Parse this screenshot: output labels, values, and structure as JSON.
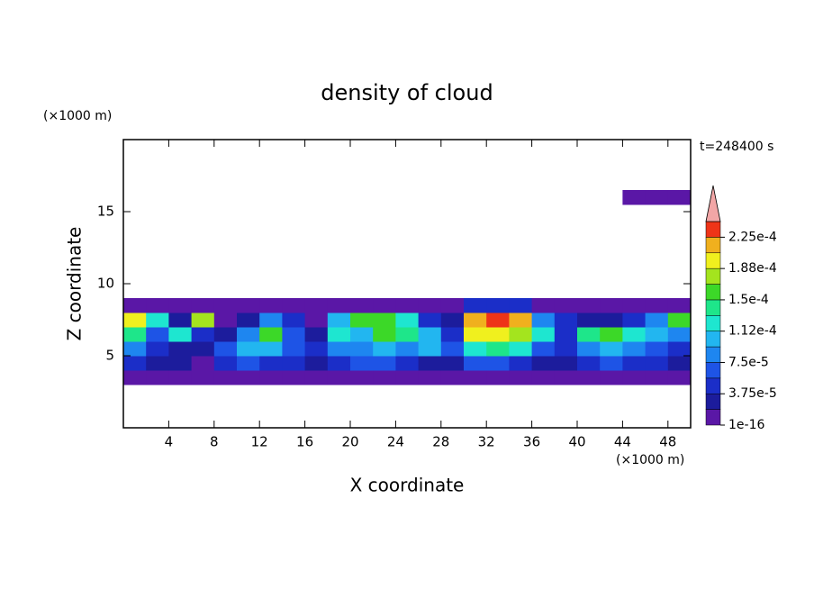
{
  "chart_data": {
    "type": "contour",
    "title": "density of cloud",
    "x_label": "X coordinate",
    "y_label": "Z coordinate",
    "x_unit": "(×1000 m)",
    "y_unit": "(×1000 m)",
    "annotation": "t=248400 s",
    "xlim": [
      0,
      50
    ],
    "ylim": [
      0,
      20
    ],
    "xticks": [
      4,
      8,
      12,
      16,
      20,
      24,
      28,
      32,
      36,
      40,
      44,
      48
    ],
    "yticks": [
      5,
      10,
      15
    ],
    "field": {
      "x": [
        1,
        3,
        5,
        7,
        9,
        11,
        13,
        15,
        17,
        19,
        21,
        23,
        25,
        27,
        29,
        31,
        33,
        35,
        37,
        39,
        41,
        43,
        45,
        47,
        49
      ],
      "z": [
        3.5,
        4.5,
        5.5,
        6.5,
        7.5,
        8.5,
        16
      ],
      "values": [
        [
          1e-05,
          1e-05,
          1e-05,
          1e-05,
          1e-05,
          1e-05,
          1e-05,
          1e-05,
          1e-05,
          1e-05,
          1e-05,
          1e-05,
          1e-05,
          1e-05,
          1e-05,
          1e-05,
          1e-05,
          1e-05,
          1e-05,
          1e-05,
          1e-05,
          1e-05,
          1e-05,
          1e-05,
          1e-05
        ],
        [
          4e-05,
          3e-05,
          2e-05,
          1e-05,
          5e-05,
          6e-05,
          5e-05,
          4e-05,
          3e-05,
          5e-05,
          6e-05,
          7e-05,
          4e-05,
          3e-05,
          2e-05,
          6e-05,
          6e-05,
          5e-05,
          3e-05,
          3e-05,
          5e-05,
          6e-05,
          5e-05,
          4e-05,
          3e-05
        ],
        [
          8e-05,
          4e-05,
          3e-05,
          2e-05,
          6e-05,
          0.00011,
          0.0001,
          7e-05,
          5e-05,
          9e-05,
          8e-05,
          0.0001,
          9e-05,
          0.00011,
          7e-05,
          0.00013,
          0.00014,
          0.00012,
          6e-05,
          4e-05,
          9e-05,
          0.0001,
          8e-05,
          6e-05,
          5e-05
        ],
        [
          0.00014,
          6e-05,
          0.00012,
          4e-05,
          3e-05,
          8e-05,
          0.00016,
          6e-05,
          3e-05,
          0.00013,
          0.00011,
          0.00015,
          0.00014,
          0.0001,
          5e-05,
          0.00019,
          0.0002,
          0.00018,
          0.00012,
          5e-05,
          0.00014,
          0.00016,
          0.00012,
          0.00011,
          9e-05
        ],
        [
          0.00019,
          0.00012,
          3e-05,
          0.00017,
          1e-05,
          3e-05,
          8e-05,
          5e-05,
          1e-05,
          0.0001,
          0.00015,
          0.00016,
          0.00013,
          5e-05,
          3e-05,
          0.00021,
          0.00023,
          0.00021,
          8e-05,
          4e-05,
          3e-05,
          2e-05,
          5e-05,
          8e-05,
          0.00015
        ],
        [
          1e-05,
          1e-05,
          1e-05,
          1e-05,
          1e-05,
          1e-05,
          1e-05,
          1e-05,
          1e-05,
          1e-05,
          1e-05,
          1e-05,
          1e-05,
          1e-05,
          1e-05,
          5e-05,
          5e-05,
          5e-05,
          1e-05,
          1e-05,
          1e-05,
          1e-05,
          1e-05,
          1e-05,
          1e-05
        ],
        [
          null,
          null,
          null,
          null,
          null,
          null,
          null,
          null,
          null,
          null,
          null,
          null,
          null,
          null,
          null,
          null,
          null,
          null,
          null,
          null,
          null,
          null,
          1e-05,
          1e-05,
          1e-05
        ]
      ]
    },
    "colorbar": {
      "levels": [
        1e-16,
        1.875e-05,
        3.75e-05,
        5.625e-05,
        7.5e-05,
        9.375e-05,
        0.0001125,
        0.00013125,
        0.00015,
        0.00016875,
        0.0001875,
        0.00020625,
        0.000225,
        0.00024375
      ],
      "colors": [
        "#5a17a6",
        "#1c1c9c",
        "#1b2ec8",
        "#1e54e6",
        "#1e86f0",
        "#22b6f0",
        "#1ee6d0",
        "#1ee68a",
        "#3cd828",
        "#a4e41e",
        "#f0f01e",
        "#f0b01e",
        "#ee3418"
      ],
      "extend_color": "#f2a6a6",
      "ticks": [
        {
          "value": 1e-16,
          "label": "1e-16"
        },
        {
          "value": 3.75e-05,
          "label": "3.75e-5"
        },
        {
          "value": 7.5e-05,
          "label": "7.5e-5"
        },
        {
          "value": 0.0001125,
          "label": "1.12e-4"
        },
        {
          "value": 0.00015,
          "label": "1.5e-4"
        },
        {
          "value": 0.0001875,
          "label": "1.88e-4"
        },
        {
          "value": 0.000225,
          "label": "2.25e-4"
        }
      ]
    }
  }
}
